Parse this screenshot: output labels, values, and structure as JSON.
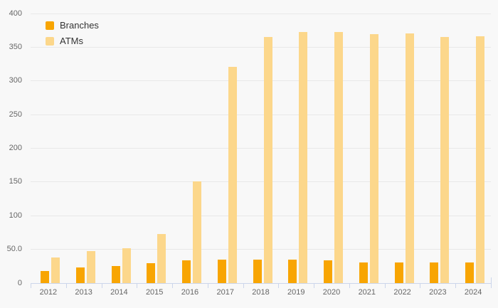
{
  "chart_data": {
    "type": "bar",
    "title": "",
    "categories": [
      "2012",
      "2013",
      "2014",
      "2015",
      "2016",
      "2017",
      "2018",
      "2019",
      "2020",
      "2021",
      "2022",
      "2023",
      "2024"
    ],
    "series": [
      {
        "name": "Branches",
        "color": "#f8a502",
        "values": [
          18,
          23,
          25,
          30,
          34,
          35,
          35,
          35,
          34,
          31,
          31,
          31,
          31
        ]
      },
      {
        "name": "ATMs",
        "color": "#fcd78b",
        "values": [
          38,
          47,
          52,
          73,
          151,
          321,
          365,
          373,
          373,
          369,
          370,
          365,
          366
        ]
      }
    ],
    "xlabel": "",
    "ylabel": "",
    "ylim": [
      0,
      400
    ],
    "ytick_labels": [
      "0",
      "50.0",
      "100",
      "150",
      "200",
      "250",
      "300",
      "350",
      "400"
    ],
    "grid": true,
    "legend_position": "top-left"
  },
  "colors": {
    "background": "#f8f8f8",
    "gridline": "#e8e8e8",
    "axis_line": "#ccd6eb",
    "tick_text": "#666666",
    "legend_text": "#333333"
  }
}
